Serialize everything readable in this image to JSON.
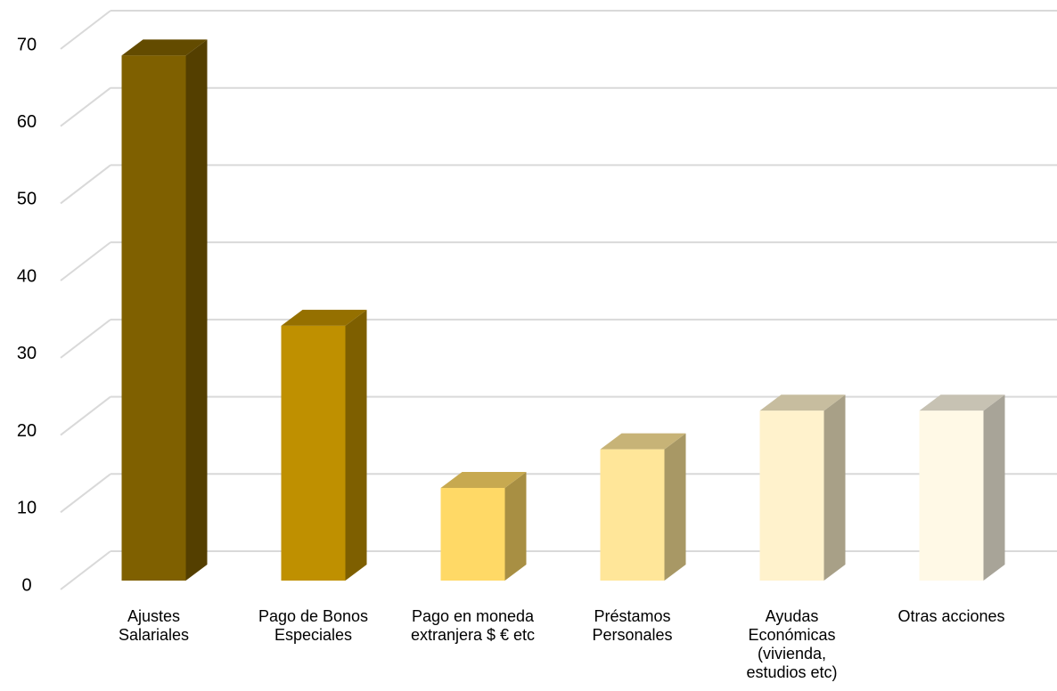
{
  "chart_data": {
    "type": "bar3d",
    "categories": [
      "Ajustes\nSalariales",
      "Pago de Bonos\nEspeciales",
      "Pago en moneda\nextranjera $ € etc",
      "Préstamos\nPersonales",
      "Ayudas\nEconómicas\n(vivienda,\nestudios etc)",
      "Otras acciones"
    ],
    "values": [
      68,
      33,
      12,
      17,
      22,
      22
    ],
    "colors": [
      "#7f6000",
      "#bf9000",
      "#ffd966",
      "#ffe699",
      "#fff2cc",
      "#fff9e6"
    ],
    "ylim": [
      0,
      70
    ],
    "yticks": [
      0,
      10,
      20,
      30,
      40,
      50,
      60,
      70
    ],
    "grid": true
  }
}
